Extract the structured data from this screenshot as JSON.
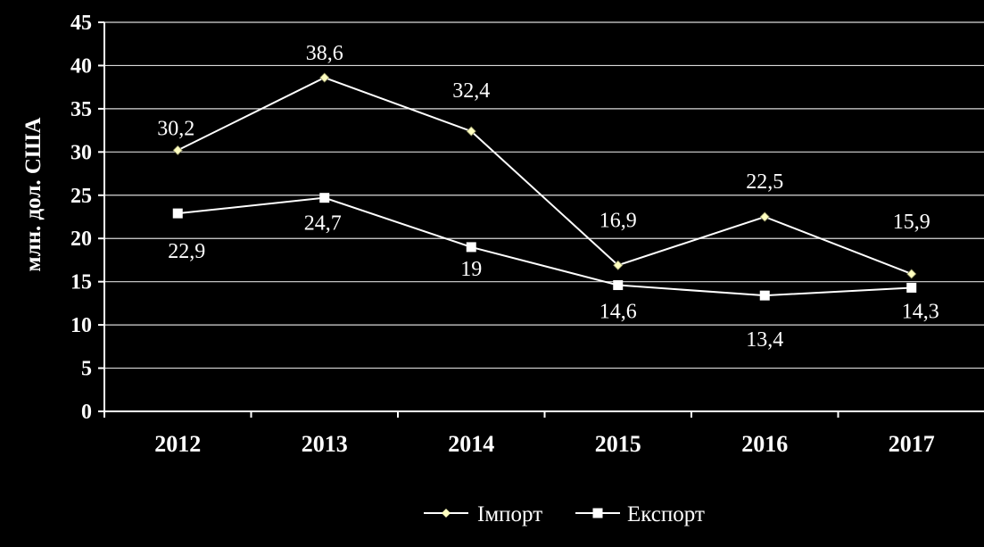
{
  "chart_data": {
    "type": "line",
    "title": "",
    "xlabel": "",
    "ylabel": "млн. дол. США",
    "categories": [
      "2012",
      "2013",
      "2014",
      "2015",
      "2016",
      "2017"
    ],
    "ylim": [
      0,
      45
    ],
    "yticks": [
      0,
      5,
      10,
      15,
      20,
      25,
      30,
      35,
      40,
      45
    ],
    "grid": true,
    "legend_position": "bottom",
    "series": [
      {
        "name": "Імпорт",
        "marker": "diamond",
        "values": [
          30.2,
          38.6,
          32.4,
          16.9,
          22.5,
          15.9
        ],
        "labels": [
          "30,2",
          "38,6",
          "32,4",
          "16,9",
          "22,5",
          "15,9"
        ],
        "color": "#ffffff",
        "marker_color": "#ffffc0"
      },
      {
        "name": "Експорт",
        "marker": "square",
        "values": [
          22.9,
          24.7,
          19,
          14.6,
          13.4,
          14.3
        ],
        "labels": [
          "22,9",
          "24,7",
          "19",
          "14,6",
          "13,4",
          "14,3"
        ],
        "color": "#ffffff",
        "marker_color": "#ffffff"
      }
    ]
  }
}
